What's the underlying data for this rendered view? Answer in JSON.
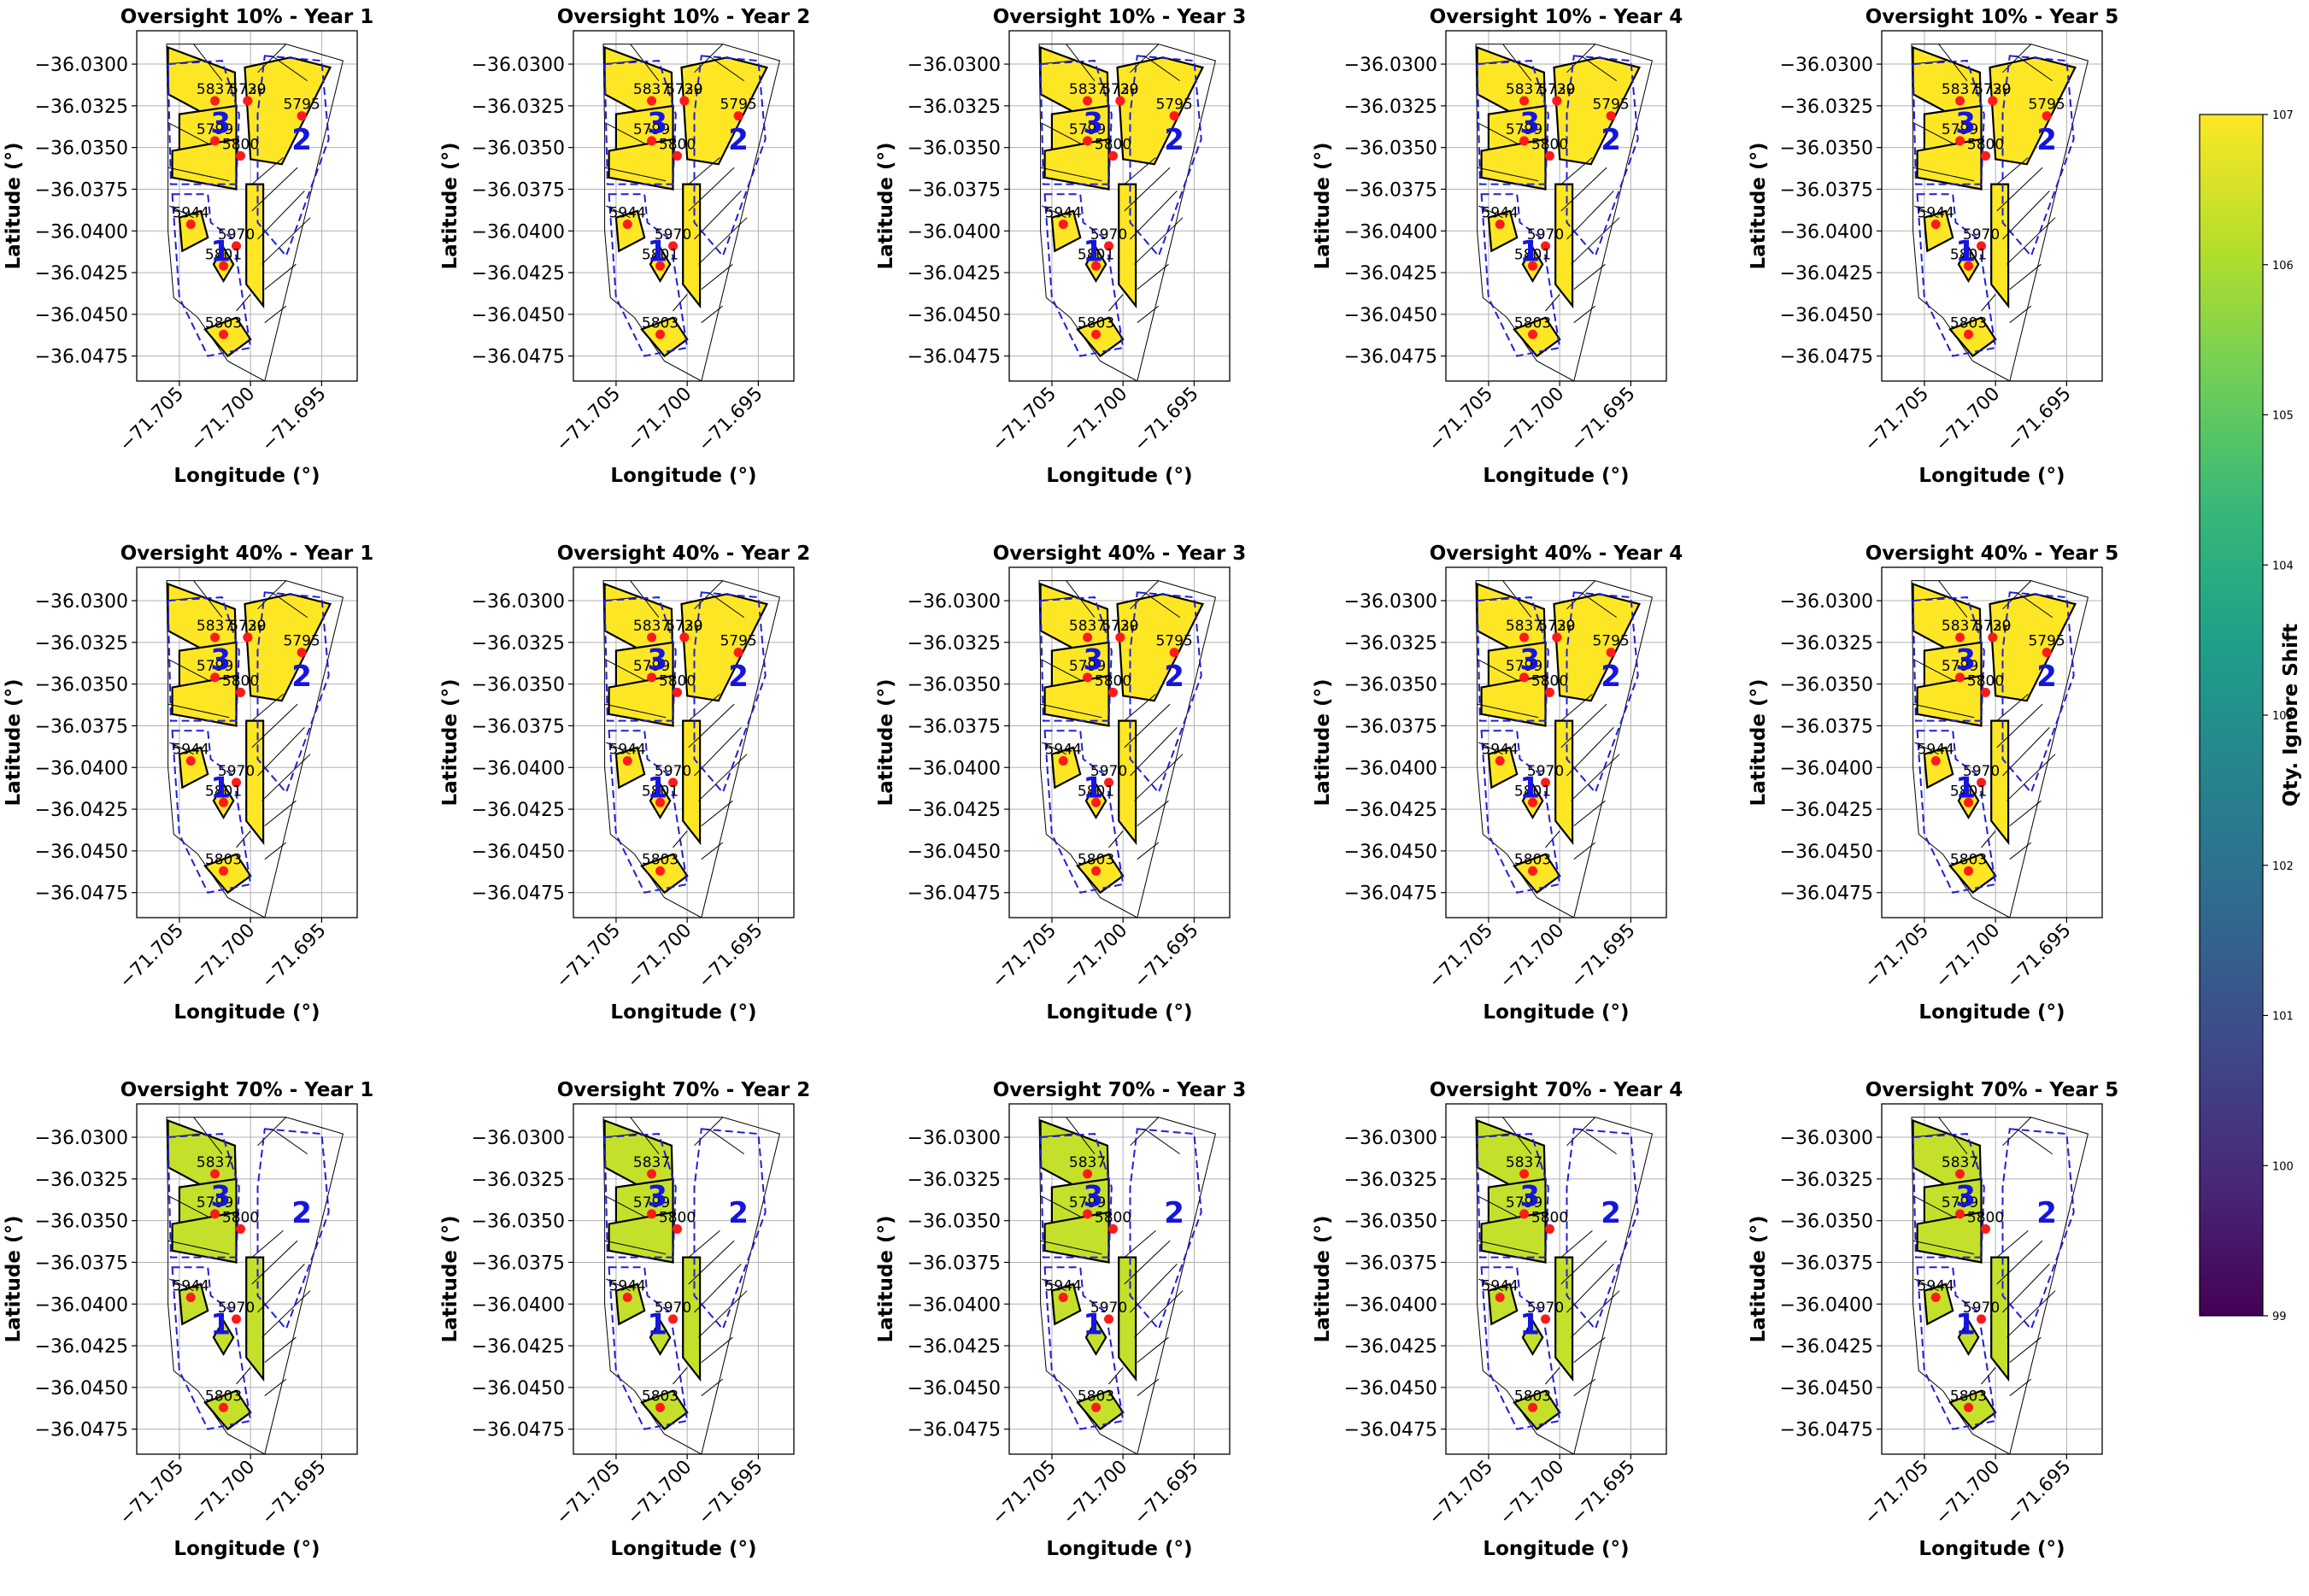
{
  "chart_data": {
    "type": "map_grid",
    "title": "",
    "xlabel": "Longitude (°)",
    "ylabel": "Latitude (°)",
    "xlim": [
      -71.708,
      -71.6925
    ],
    "ylim": [
      -36.049,
      -36.028
    ],
    "xticks": [
      -71.705,
      -71.7,
      -71.695
    ],
    "xtick_labels": [
      "−71.705",
      "−71.700",
      "−71.695"
    ],
    "yticks": [
      -36.03,
      -36.0325,
      -36.035,
      -36.0375,
      -36.04,
      -36.0425,
      -36.045,
      -36.0475
    ],
    "ytick_labels": [
      "−36.0300",
      "−36.0325",
      "−36.0350",
      "−36.0375",
      "−36.0400",
      "−36.0425",
      "−36.0450",
      "−36.0475"
    ],
    "grid": true,
    "colorbar": {
      "label": "Qty. Ignore Shift",
      "min": 99,
      "max": 107,
      "ticks": [
        99,
        100,
        101,
        102,
        103,
        104,
        105,
        106,
        107
      ],
      "tick_labels": [
        "99",
        "100",
        "101",
        "102",
        "103",
        "104",
        "105",
        "106",
        "107"
      ],
      "colormap": "viridis",
      "colors": [
        "#440154",
        "#482878",
        "#3e4989",
        "#31688e",
        "#26828e",
        "#1f9e89",
        "#35b779",
        "#6ece58",
        "#b5de2b",
        "#fde725"
      ]
    },
    "zone_labels": [
      "1",
      "2",
      "3"
    ],
    "rows": [
      {
        "oversight": "10%",
        "panel_titles": [
          "Oversight 10% - Year 1",
          "Oversight 10% - Year 2",
          "Oversight 10% - Year 3",
          "Oversight 10% - Year 4",
          "Oversight 10% - Year 5"
        ],
        "active_zones": [
          1,
          2,
          3
        ],
        "fill_value": 107,
        "points": [
          {
            "id": "5730",
            "lon": -71.7002,
            "lat": -36.0322
          },
          {
            "id": "5729",
            "lon": -71.7002,
            "lat": -36.0322
          },
          {
            "id": "5837",
            "lon": -71.7025,
            "lat": -36.0322
          },
          {
            "id": "5795",
            "lon": -71.6964,
            "lat": -36.0331
          },
          {
            "id": "5799",
            "lon": -71.7025,
            "lat": -36.0346
          },
          {
            "id": "5800",
            "lon": -71.7007,
            "lat": -36.0355
          },
          {
            "id": "5944",
            "lon": -71.7042,
            "lat": -36.0396
          },
          {
            "id": "5970",
            "lon": -71.701,
            "lat": -36.0409
          },
          {
            "id": "5801",
            "lon": -71.7019,
            "lat": -36.0421
          },
          {
            "id": "5803",
            "lon": -71.7019,
            "lat": -36.0462
          }
        ]
      },
      {
        "oversight": "40%",
        "panel_titles": [
          "Oversight 40% - Year 1",
          "Oversight 40% - Year 2",
          "Oversight 40% - Year 3",
          "Oversight 40% - Year 4",
          "Oversight 40% - Year 5"
        ],
        "active_zones": [
          1,
          2,
          3
        ],
        "fill_value": 107,
        "points": [
          {
            "id": "5730",
            "lon": -71.7002,
            "lat": -36.0322
          },
          {
            "id": "5729",
            "lon": -71.7002,
            "lat": -36.0322
          },
          {
            "id": "5837",
            "lon": -71.7025,
            "lat": -36.0322
          },
          {
            "id": "5795",
            "lon": -71.6964,
            "lat": -36.0331
          },
          {
            "id": "5799",
            "lon": -71.7025,
            "lat": -36.0346
          },
          {
            "id": "5800",
            "lon": -71.7007,
            "lat": -36.0355
          },
          {
            "id": "5944",
            "lon": -71.7042,
            "lat": -36.0396
          },
          {
            "id": "5970",
            "lon": -71.701,
            "lat": -36.0409
          },
          {
            "id": "5801",
            "lon": -71.7019,
            "lat": -36.0421
          },
          {
            "id": "5803",
            "lon": -71.7019,
            "lat": -36.0462
          }
        ]
      },
      {
        "oversight": "70%",
        "panel_titles": [
          "Oversight 70% - Year 1",
          "Oversight 70% - Year 2",
          "Oversight 70% - Year 3",
          "Oversight 70% - Year 4",
          "Oversight 70% - Year 5"
        ],
        "active_zones": [
          1,
          3
        ],
        "fill_value": 106.3,
        "points": [
          {
            "id": "5837",
            "lon": -71.7025,
            "lat": -36.0322
          },
          {
            "id": "5799",
            "lon": -71.7025,
            "lat": -36.0346
          },
          {
            "id": "5800",
            "lon": -71.7007,
            "lat": -36.0355
          },
          {
            "id": "5944",
            "lon": -71.7042,
            "lat": -36.0396
          },
          {
            "id": "5970",
            "lon": -71.701,
            "lat": -36.0409
          },
          {
            "id": "5803",
            "lon": -71.7019,
            "lat": -36.0462
          }
        ]
      }
    ]
  }
}
